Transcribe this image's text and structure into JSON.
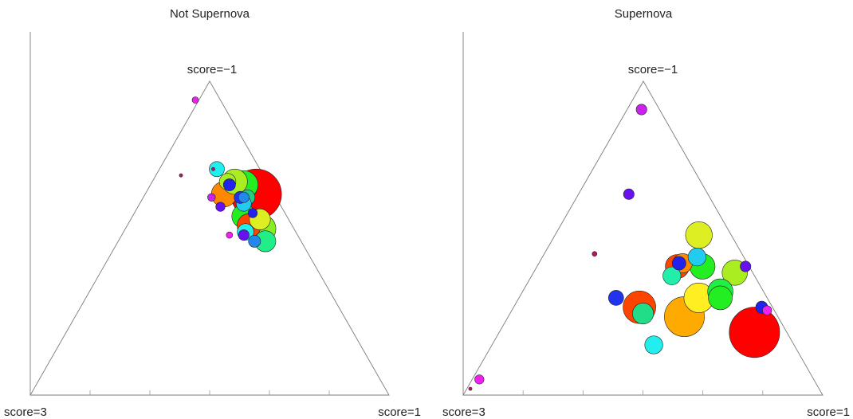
{
  "chart_data": [
    {
      "type": "scatter",
      "subtype": "ternary-bubble",
      "title": "Not Supernova",
      "vertex_labels": {
        "top": "score=−1",
        "bottom_left": "score=3",
        "bottom_right": "score=1"
      },
      "coordinates": "barycentric fractions [top, bottom_left, bottom_right]",
      "points": [
        {
          "w": [
            0.94,
            0.07,
            -0.01
          ],
          "size": 3,
          "color": "#ee22ee"
        },
        {
          "w": [
            0.7,
            0.23,
            0.07
          ],
          "size": 1,
          "color": "#bb1166"
        },
        {
          "w": [
            0.72,
            0.13,
            0.15
          ],
          "size": 1,
          "color": "#bb1166"
        },
        {
          "w": [
            0.72,
            0.12,
            0.16
          ],
          "size": 9,
          "color": "#22eeee"
        },
        {
          "w": [
            0.63,
            0.18,
            0.19
          ],
          "size": 4,
          "color": "#cc22ee"
        },
        {
          "w": [
            0.6,
            0.17,
            0.23
          ],
          "size": 5,
          "color": "#6611ee"
        },
        {
          "w": [
            0.51,
            0.19,
            0.3
          ],
          "size": 3,
          "color": "#ee22ee"
        },
        {
          "w": [
            0.64,
            0.05,
            0.31
          ],
          "size": 33,
          "color": "#ff0000"
        },
        {
          "w": [
            0.64,
            0.14,
            0.22
          ],
          "size": 16,
          "color": "#ff8800"
        },
        {
          "w": [
            0.68,
            0.09,
            0.23
          ],
          "size": 16,
          "color": "#aaee22"
        },
        {
          "w": [
            0.68,
            0.11,
            0.21
          ],
          "size": 10,
          "color": "#aaee22"
        },
        {
          "w": [
            0.67,
            0.07,
            0.26
          ],
          "size": 18,
          "color": "#22ee22"
        },
        {
          "w": [
            0.67,
            0.11,
            0.22
          ],
          "size": 7,
          "color": "#2222ee"
        },
        {
          "w": [
            0.63,
            0.08,
            0.29
          ],
          "size": 9,
          "color": "#22cc88"
        },
        {
          "w": [
            0.63,
            0.1,
            0.27
          ],
          "size": 7,
          "color": "#2233ee"
        },
        {
          "w": [
            0.63,
            0.09,
            0.28
          ],
          "size": 6,
          "color": "#2288ee"
        },
        {
          "w": [
            0.61,
            0.1,
            0.29
          ],
          "size": 9,
          "color": "#22ccee"
        },
        {
          "w": [
            0.57,
            0.12,
            0.31
          ],
          "size": 15,
          "color": "#22ee22"
        },
        {
          "w": [
            0.56,
            0.08,
            0.36
          ],
          "size": 13,
          "color": "#ddee22"
        },
        {
          "w": [
            0.58,
            0.09,
            0.33
          ],
          "size": 5,
          "color": "#2222ee"
        },
        {
          "w": [
            0.54,
            0.12,
            0.34
          ],
          "size": 15,
          "color": "#ff4400"
        },
        {
          "w": [
            0.52,
            0.14,
            0.34
          ],
          "size": 10,
          "color": "#22eeee"
        },
        {
          "w": [
            0.51,
            0.15,
            0.34
          ],
          "size": 6,
          "color": "#6611ee"
        },
        {
          "w": [
            0.53,
            0.09,
            0.38
          ],
          "size": 18,
          "color": "#88ee22"
        },
        {
          "w": [
            0.49,
            0.1,
            0.41
          ],
          "size": 13,
          "color": "#22ee88"
        },
        {
          "w": [
            0.49,
            0.13,
            0.38
          ],
          "size": 7,
          "color": "#2288ee"
        }
      ]
    },
    {
      "type": "scatter",
      "subtype": "ternary-bubble",
      "title": "Supernova",
      "vertex_labels": {
        "top": "score=−1",
        "bottom_left": "score=3",
        "bottom_right": "score=1"
      },
      "coordinates": "barycentric fractions [top, bottom_left, bottom_right]",
      "points": [
        {
          "w": [
            0.91,
            0.05,
            0.04
          ],
          "size": 6,
          "color": "#cc22ee"
        },
        {
          "w": [
            0.64,
            0.22,
            0.14
          ],
          "size": 6,
          "color": "#6611ee"
        },
        {
          "w": [
            0.05,
            0.93,
            0.02
          ],
          "size": 5,
          "color": "#ee22ee"
        },
        {
          "w": [
            0.02,
            0.97,
            0.01
          ],
          "size": 1,
          "color": "#bb1166"
        },
        {
          "w": [
            0.45,
            0.41,
            0.14
          ],
          "size": 2,
          "color": "#bb1166"
        },
        {
          "w": [
            0.51,
            0.09,
            0.4
          ],
          "size": 17,
          "color": "#ddee22"
        },
        {
          "w": [
            0.41,
            0.2,
            0.39
          ],
          "size": 15,
          "color": "#ff4400"
        },
        {
          "w": [
            0.42,
            0.18,
            0.4
          ],
          "size": 12,
          "color": "#ff8800"
        },
        {
          "w": [
            0.42,
            0.19,
            0.39
          ],
          "size": 8,
          "color": "#2222ee"
        },
        {
          "w": [
            0.44,
            0.13,
            0.43
          ],
          "size": 11,
          "color": "#22ccee"
        },
        {
          "w": [
            0.41,
            0.13,
            0.46
          ],
          "size": 16,
          "color": "#22ee22"
        },
        {
          "w": [
            0.39,
            0.05,
            0.56
          ],
          "size": 16,
          "color": "#aaee22"
        },
        {
          "w": [
            0.41,
            0.01,
            0.58
          ],
          "size": 6,
          "color": "#6611ee"
        },
        {
          "w": [
            0.38,
            0.23,
            0.39
          ],
          "size": 11,
          "color": "#22eeaa"
        },
        {
          "w": [
            0.33,
            0.12,
            0.55
          ],
          "size": 16,
          "color": "#22ee44"
        },
        {
          "w": [
            0.31,
            0.19,
            0.5
          ],
          "size": 19,
          "color": "#ffee22"
        },
        {
          "w": [
            0.31,
            0.13,
            0.56
          ],
          "size": 15,
          "color": "#22ee22"
        },
        {
          "w": [
            0.28,
            0.37,
            0.35
          ],
          "size": 21,
          "color": "#ff4400"
        },
        {
          "w": [
            0.31,
            0.42,
            0.27
          ],
          "size": 9,
          "color": "#2233ee"
        },
        {
          "w": [
            0.25,
            0.26,
            0.49
          ],
          "size": 26,
          "color": "#ffaa00"
        },
        {
          "w": [
            0.2,
            0.09,
            0.71
          ],
          "size": 33,
          "color": "#ff0000"
        },
        {
          "w": [
            0.28,
            0.03,
            0.69
          ],
          "size": 7,
          "color": "#2222ee"
        },
        {
          "w": [
            0.27,
            0.02,
            0.71
          ],
          "size": 5,
          "color": "#ee22ee"
        },
        {
          "w": [
            0.26,
            0.37,
            0.37
          ],
          "size": 13,
          "color": "#22dd88"
        },
        {
          "w": [
            0.16,
            0.39,
            0.45
          ],
          "size": 11,
          "color": "#22eeee"
        }
      ]
    }
  ]
}
